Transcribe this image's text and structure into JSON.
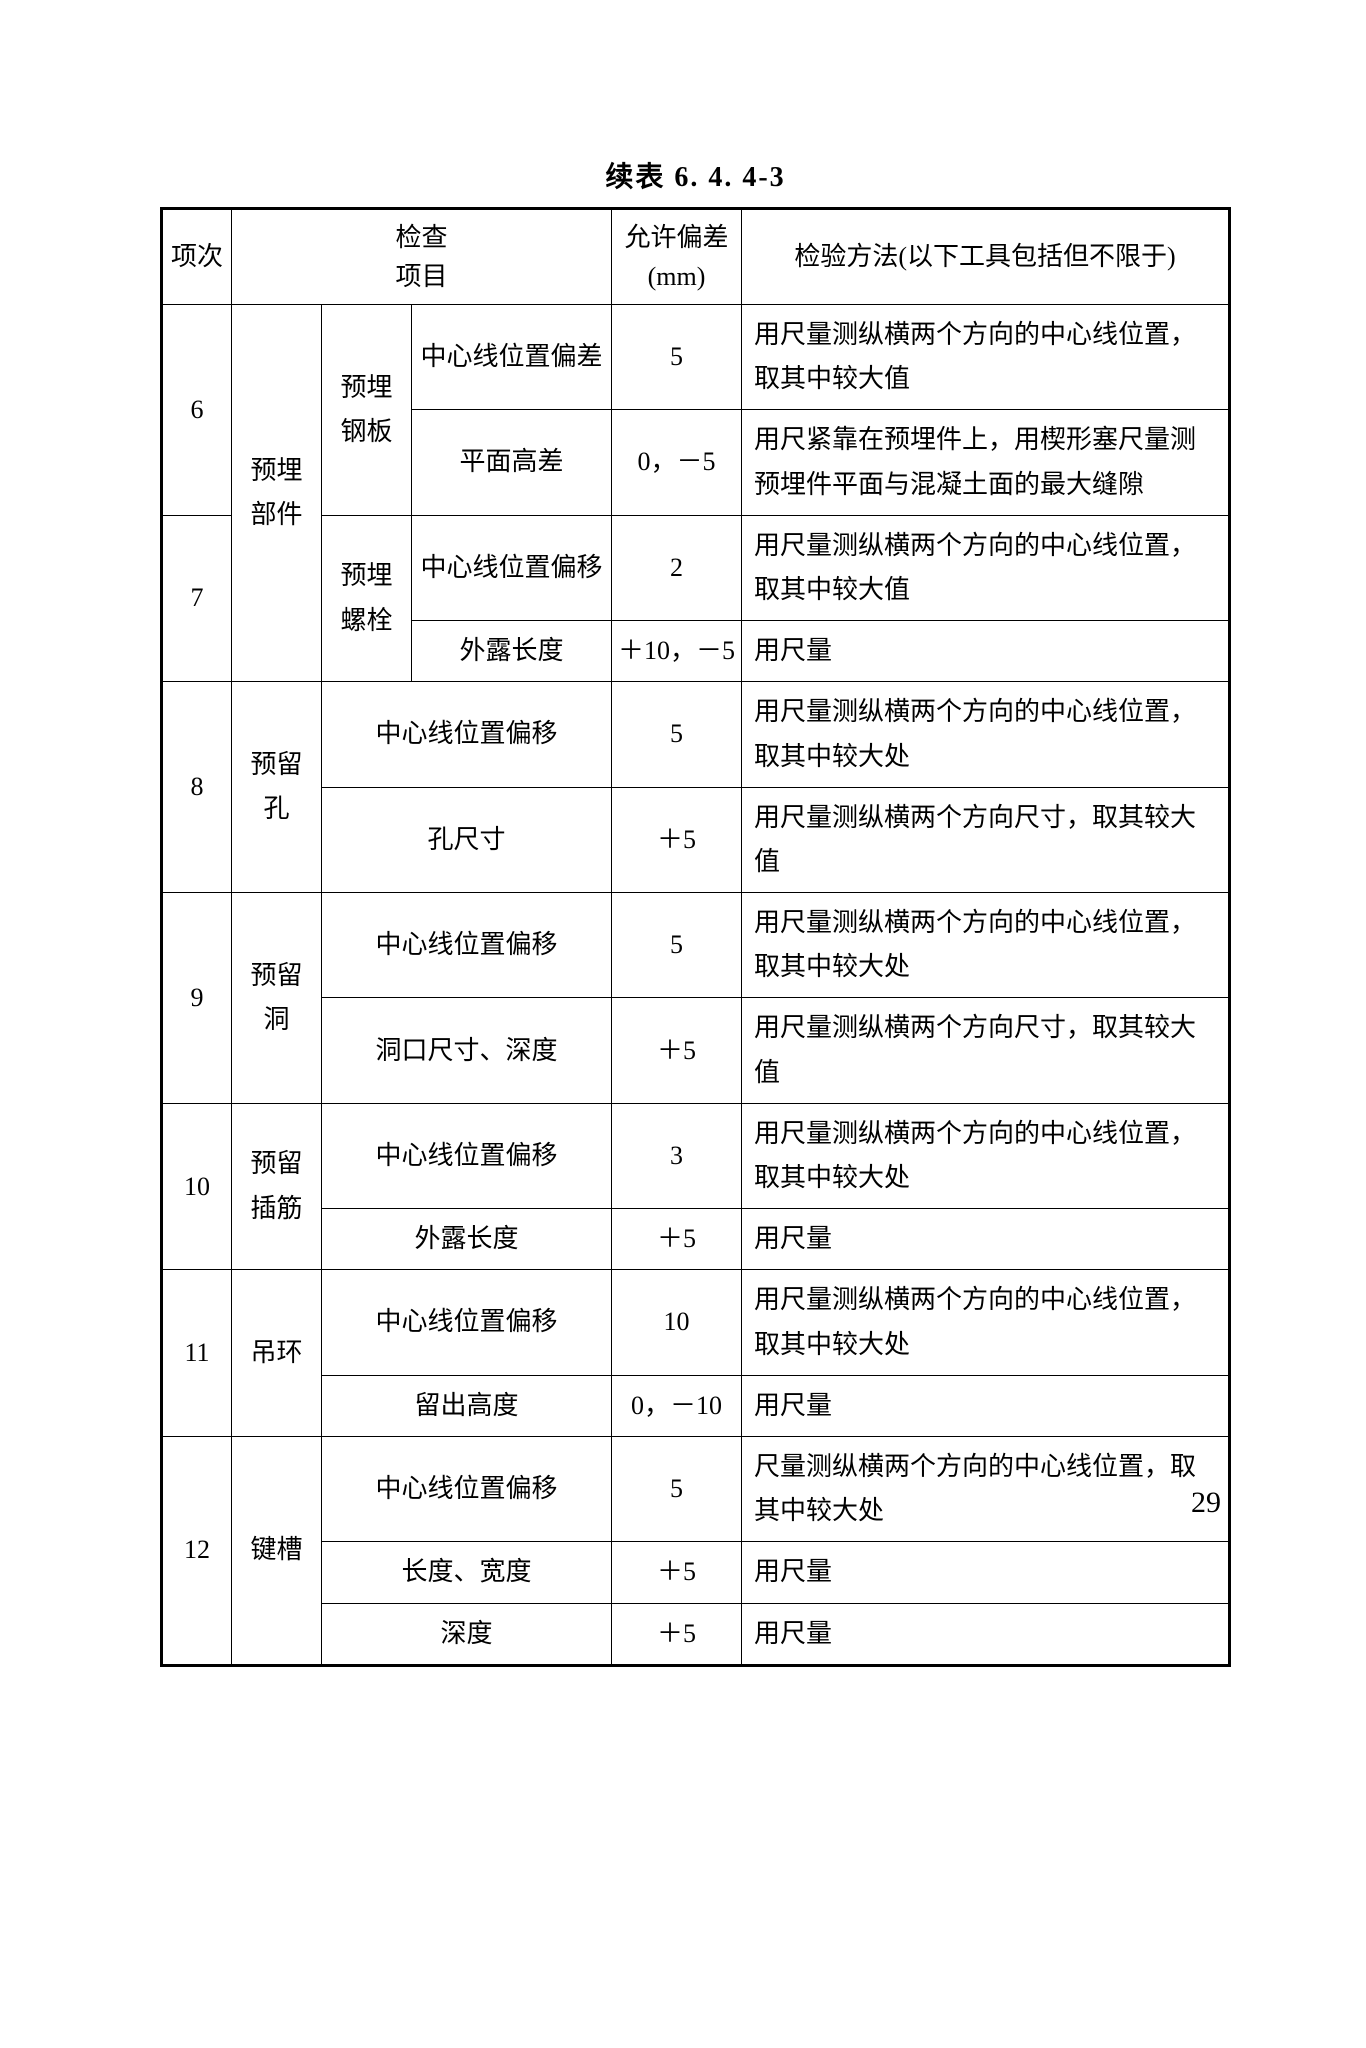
{
  "caption": "续表 6. 4. 4-3",
  "page_number": "29",
  "header": {
    "idx": "项次",
    "check_line1": "检查",
    "check_line2": "项目",
    "tol_line1": "允许偏差",
    "tol_line2": "(mm)",
    "method": "检验方法(以下工具包括但不限于)"
  },
  "rows": {
    "r6": {
      "idx": "6",
      "cat": "预埋部件",
      "sub1": "预埋钢板",
      "item_a": "中心线位置偏差",
      "tol_a": "5",
      "meth_a": "用尺量测纵横两个方向的中心线位置，取其中较大值",
      "item_b": "平面高差",
      "tol_b": "0，－5",
      "meth_b": "用尺紧靠在预埋件上，用楔形塞尺量测预埋件平面与混凝土面的最大缝隙"
    },
    "r7": {
      "idx": "7",
      "sub": "预埋螺栓",
      "item_a": "中心线位置偏移",
      "tol_a": "2",
      "meth_a": "用尺量测纵横两个方向的中心线位置，取其中较大值",
      "item_b": "外露长度",
      "tol_b": "＋10，－5",
      "meth_b": "用尺量"
    },
    "r8": {
      "idx": "8",
      "cat": "预留孔",
      "item_a": "中心线位置偏移",
      "tol_a": "5",
      "meth_a": "用尺量测纵横两个方向的中心线位置，取其中较大处",
      "item_b": "孔尺寸",
      "tol_b": "＋5",
      "meth_b": "用尺量测纵横两个方向尺寸，取其较大值"
    },
    "r9": {
      "idx": "9",
      "cat": "预留洞",
      "item_a": "中心线位置偏移",
      "tol_a": "5",
      "meth_a": "用尺量测纵横两个方向的中心线位置，取其中较大处",
      "item_b": "洞口尺寸、深度",
      "tol_b": "＋5",
      "meth_b": "用尺量测纵横两个方向尺寸，取其较大值"
    },
    "r10": {
      "idx": "10",
      "cat": "预留插筋",
      "item_a": "中心线位置偏移",
      "tol_a": "3",
      "meth_a": "用尺量测纵横两个方向的中心线位置，取其中较大处",
      "item_b": "外露长度",
      "tol_b": "＋5",
      "meth_b": "用尺量"
    },
    "r11": {
      "idx": "11",
      "cat": "吊环",
      "item_a": "中心线位置偏移",
      "tol_a": "10",
      "meth_a": "用尺量测纵横两个方向的中心线位置，取其中较大处",
      "item_b": "留出高度",
      "tol_b": "0，－10",
      "meth_b": "用尺量"
    },
    "r12": {
      "idx": "12",
      "cat": "键槽",
      "item_a": "中心线位置偏移",
      "tol_a": "5",
      "meth_a": "尺量测纵横两个方向的中心线位置，取其中较大处",
      "item_b": "长度、宽度",
      "tol_b": "＋5",
      "meth_b": "用尺量",
      "item_c": "深度",
      "tol_c": "＋5",
      "meth_c": "用尺量"
    }
  }
}
